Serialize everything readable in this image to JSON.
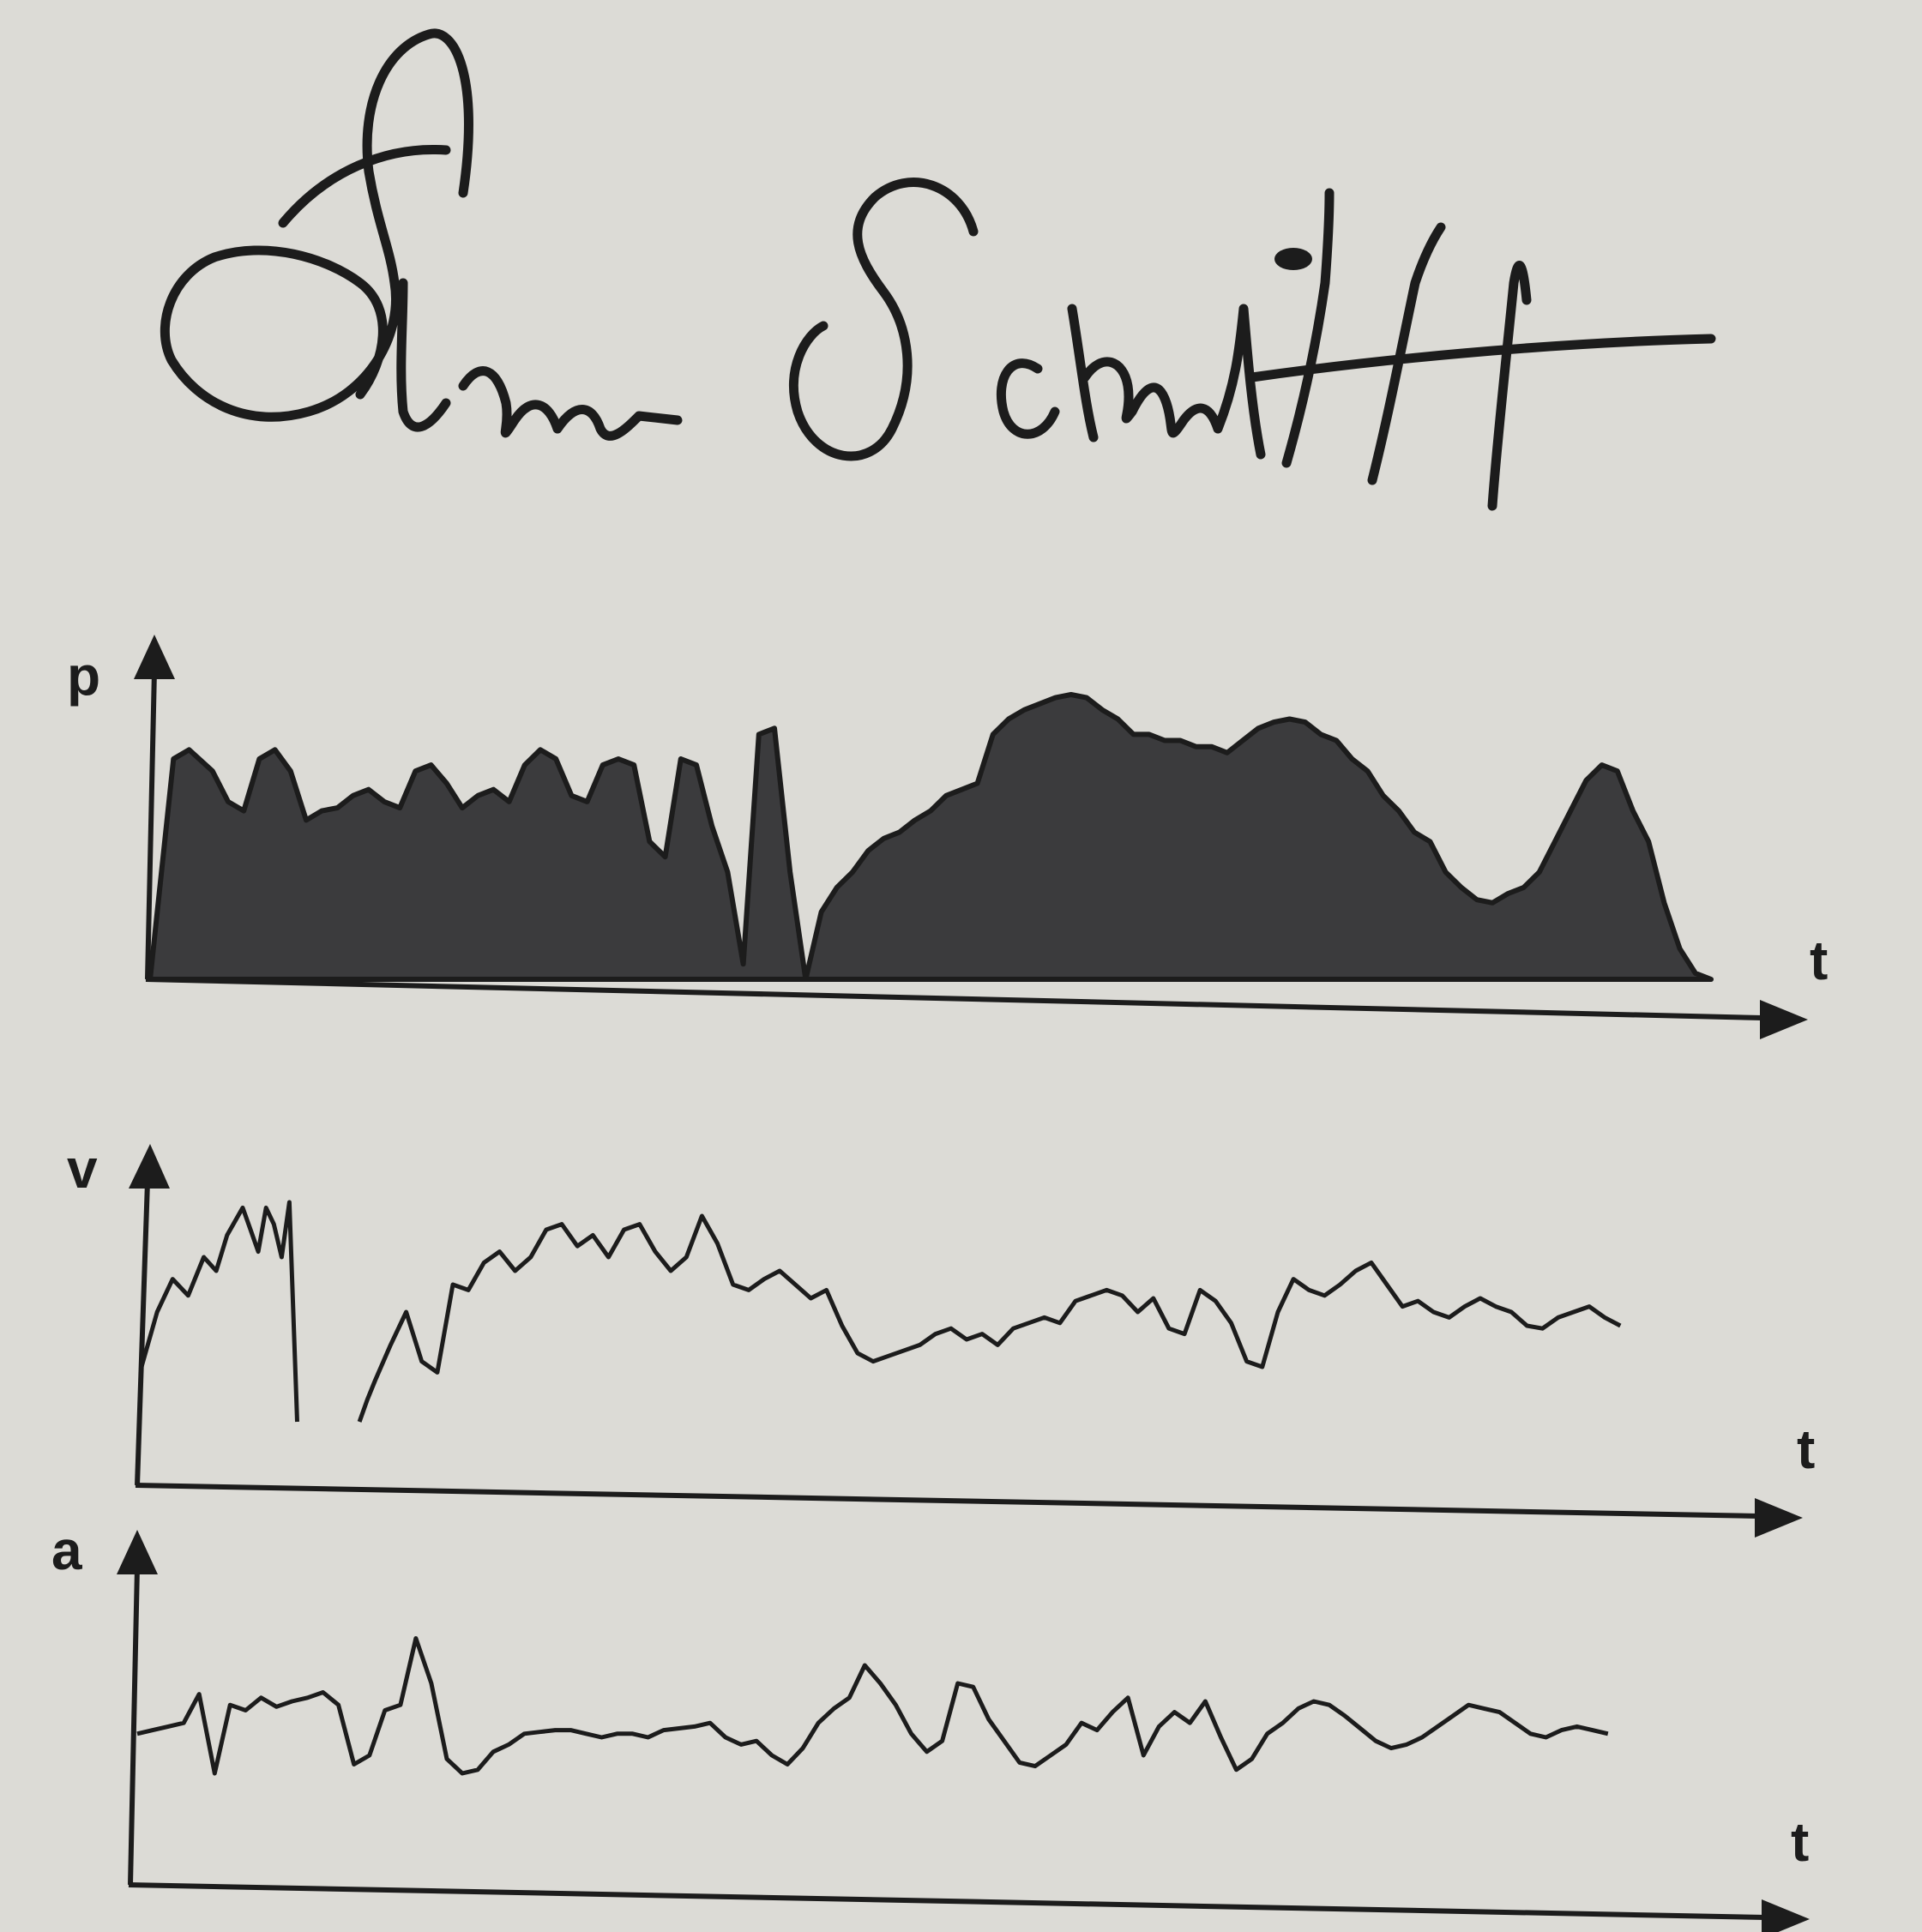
{
  "signature": {
    "text": "Stefan Schmitt"
  },
  "colors": {
    "background": "#dcdbd6",
    "ink": "#1c1c1c",
    "fill": "#3b3b3d"
  },
  "chart_data": [
    {
      "type": "area",
      "ylabel": "p",
      "xlabel": "t",
      "xlim": [
        0,
        100
      ],
      "ylim": [
        0,
        100
      ],
      "grid": false,
      "legend": "none",
      "x": [
        0,
        1.5,
        2.5,
        4,
        5,
        6,
        7,
        8,
        9,
        10,
        11,
        12,
        13,
        14,
        15,
        16,
        17,
        18,
        19,
        20,
        21,
        22,
        23,
        24,
        25,
        26,
        27,
        28,
        29,
        30,
        31,
        32,
        33,
        34,
        35,
        36,
        37,
        38,
        39,
        40,
        41,
        42,
        43,
        44,
        45,
        46,
        47,
        48,
        49,
        50,
        51,
        52,
        53,
        54,
        55,
        56,
        57,
        58,
        59,
        60,
        61,
        62,
        63,
        64,
        65,
        66,
        67,
        68,
        69,
        70,
        71,
        72,
        73,
        74,
        75,
        76,
        77,
        78,
        79,
        80,
        81,
        82,
        83,
        84,
        85,
        86,
        87,
        88,
        89,
        90,
        91,
        92,
        93,
        94,
        95,
        96,
        97,
        98,
        99,
        100
      ],
      "values": [
        0,
        72,
        75,
        68,
        58,
        55,
        72,
        75,
        68,
        52,
        55,
        56,
        60,
        62,
        58,
        56,
        68,
        70,
        64,
        56,
        60,
        62,
        58,
        70,
        75,
        72,
        60,
        58,
        70,
        72,
        70,
        45,
        40,
        72,
        70,
        50,
        35,
        5,
        80,
        82,
        35,
        0,
        22,
        30,
        35,
        42,
        46,
        48,
        52,
        55,
        60,
        62,
        64,
        80,
        85,
        88,
        90,
        92,
        93,
        92,
        88,
        85,
        80,
        80,
        78,
        78,
        76,
        76,
        74,
        78,
        82,
        84,
        85,
        84,
        80,
        78,
        72,
        68,
        60,
        55,
        48,
        45,
        35,
        30,
        26,
        25,
        28,
        30,
        35,
        45,
        55,
        65,
        70,
        68,
        55,
        45,
        25,
        10,
        2,
        0
      ]
    },
    {
      "type": "line",
      "ylabel": "v",
      "xlabel": "t",
      "xlim": [
        0,
        100
      ],
      "ylim": [
        0,
        100
      ],
      "grid": false,
      "legend": "none",
      "x": [
        0,
        1,
        2,
        3,
        4,
        4.8,
        5.5,
        6.5,
        7,
        7.5,
        8,
        8.5,
        9,
        9.5,
        10,
        11,
        12,
        14,
        14.5,
        15,
        16,
        17,
        18,
        19,
        20,
        21,
        22,
        23,
        24,
        25,
        26,
        27,
        28,
        29,
        30,
        31,
        32,
        33,
        34,
        35,
        36,
        37,
        38,
        39,
        40,
        41,
        42,
        43,
        44,
        45,
        46,
        47,
        48,
        49,
        50,
        51,
        52,
        53,
        54,
        55,
        56,
        57,
        58,
        59,
        60,
        61,
        62,
        63,
        64,
        65,
        66,
        67,
        68,
        69,
        70,
        71,
        72,
        73,
        74,
        75,
        76,
        77,
        78,
        79,
        80,
        81,
        82,
        83,
        84,
        85,
        86,
        87,
        88,
        89,
        90,
        91,
        92,
        93,
        94,
        95
      ],
      "values": [
        30,
        50,
        62,
        56,
        70,
        65,
        78,
        88,
        80,
        72,
        88,
        82,
        70,
        90,
        10,
        null,
        null,
        10,
        18,
        25,
        38,
        50,
        32,
        28,
        60,
        58,
        68,
        72,
        65,
        70,
        80,
        82,
        74,
        78,
        70,
        80,
        82,
        72,
        65,
        70,
        85,
        75,
        60,
        58,
        62,
        65,
        60,
        55,
        58,
        45,
        35,
        32,
        34,
        36,
        38,
        42,
        44,
        40,
        42,
        38,
        44,
        46,
        48,
        46,
        54,
        56,
        58,
        56,
        50,
        55,
        44,
        42,
        58,
        54,
        46,
        32,
        30,
        50,
        62,
        58,
        56,
        60,
        65,
        68,
        60,
        52,
        54,
        50,
        48,
        52,
        55,
        52,
        50,
        45,
        44,
        48,
        50,
        52,
        48,
        45
      ]
    },
    {
      "type": "line",
      "ylabel": "a",
      "xlabel": "t",
      "xlim": [
        0,
        100
      ],
      "ylim": [
        0,
        100
      ],
      "grid": false,
      "legend": "none",
      "x": [
        0,
        1,
        2,
        3,
        4,
        5,
        6,
        7,
        8,
        9,
        10,
        11,
        12,
        13,
        14,
        15,
        16,
        17,
        18,
        19,
        20,
        21,
        22,
        23,
        24,
        25,
        26,
        27,
        28,
        29,
        30,
        31,
        32,
        33,
        34,
        35,
        36,
        37,
        38,
        39,
        40,
        41,
        42,
        43,
        44,
        45,
        46,
        47,
        48,
        49,
        50,
        51,
        52,
        53,
        54,
        55,
        56,
        57,
        58,
        59,
        60,
        61,
        62,
        63,
        64,
        65,
        66,
        67,
        68,
        69,
        70,
        71,
        72,
        73,
        74,
        75,
        76,
        77,
        78,
        79,
        80,
        81,
        82,
        83,
        84,
        85,
        86,
        87,
        88,
        89,
        90,
        91,
        92,
        93,
        94,
        95
      ],
      "values": [
        42,
        44,
        46,
        48,
        64,
        20,
        58,
        55,
        62,
        57,
        60,
        62,
        65,
        58,
        25,
        30,
        55,
        58,
        95,
        70,
        28,
        20,
        22,
        32,
        36,
        42,
        43,
        44,
        44,
        42,
        40,
        42,
        42,
        40,
        44,
        45,
        46,
        48,
        40,
        36,
        38,
        30,
        25,
        34,
        48,
        56,
        62,
        80,
        70,
        58,
        42,
        32,
        38,
        70,
        68,
        50,
        38,
        26,
        24,
        30,
        36,
        48,
        44,
        54,
        62,
        30,
        46,
        54,
        48,
        60,
        40,
        22,
        28,
        42,
        48,
        56,
        60,
        58,
        52,
        45,
        38,
        34,
        36,
        40,
        46,
        52,
        58,
        56,
        54,
        48,
        42,
        40,
        44,
        46,
        44,
        42
      ]
    }
  ]
}
